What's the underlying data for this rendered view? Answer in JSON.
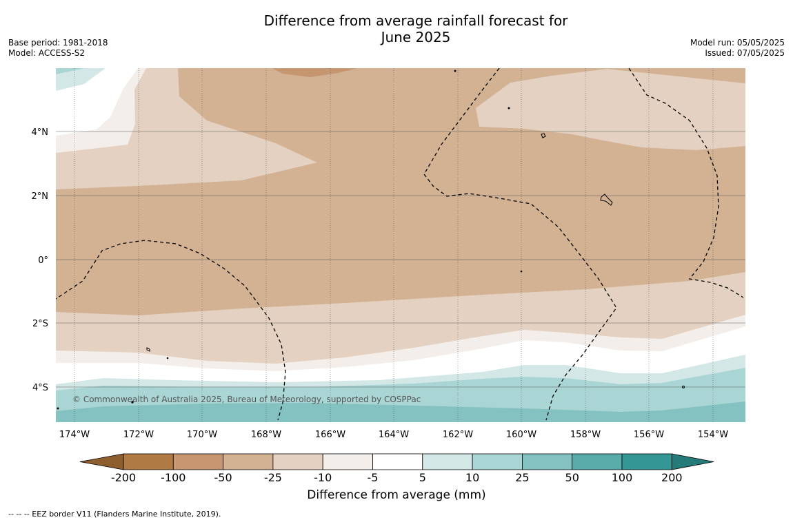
{
  "title": {
    "line1": "Difference from average rainfall forecast for",
    "line2": "June 2025"
  },
  "meta_left": {
    "base_period": "Base period: 1981-2018",
    "model": "Model: ACCESS-S2"
  },
  "meta_right": {
    "model_run": "Model run: 05/05/2025",
    "issued": "Issued: 07/05/2025"
  },
  "map": {
    "lat_labels": [
      "4°N",
      "2°N",
      "0°",
      "2°S",
      "4°S"
    ],
    "lon_labels": [
      "174°W",
      "172°W",
      "170°W",
      "168°W",
      "166°W",
      "164°W",
      "162°W",
      "160°W",
      "158°W",
      "156°W",
      "154°W"
    ],
    "copyright": "© Commonwealth of Australia 2025, Bureau of Meteorology, supported by COSPPac"
  },
  "colorbar": {
    "ticks": [
      "-200",
      "-100",
      "-50",
      "-25",
      "-10",
      "-5",
      "5",
      "10",
      "25",
      "50",
      "100",
      "200"
    ],
    "colors": [
      "#8e5e2e",
      "#b07a45",
      "#c59670",
      "#d3b193",
      "#e4d1c1",
      "#f3eee9",
      "#ffffff",
      "#d3e7e6",
      "#aad5d5",
      "#84c2c1",
      "#5aacab",
      "#349795",
      "#247b79"
    ],
    "label": "Difference from average (mm)"
  },
  "footnote": "--  --  -- EEZ border V11 (Flanders Marine Institute, 2019)."
}
